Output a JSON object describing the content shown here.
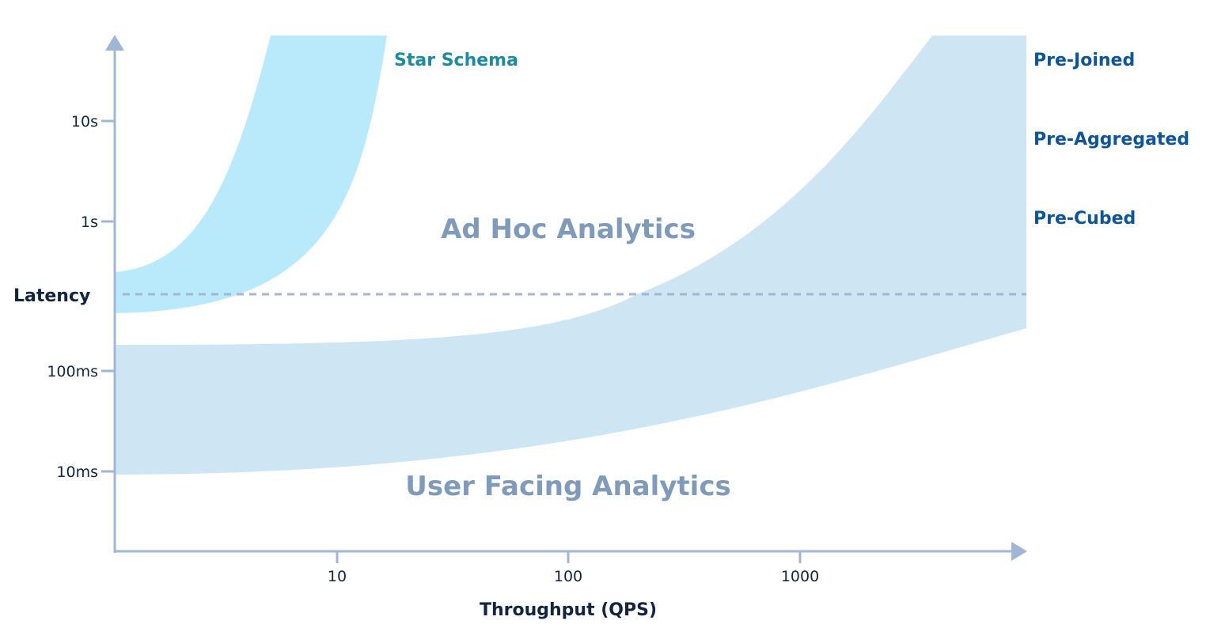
{
  "chart_data": {
    "type": "area",
    "title": "",
    "xlabel": "Throughput (QPS)",
    "ylabel": "Latency",
    "x_scale": "log",
    "y_scale": "log",
    "x_ticks": [
      "10",
      "100",
      "1000"
    ],
    "y_ticks": [
      "10s",
      "1s",
      "100ms",
      "10ms"
    ],
    "regions": [
      {
        "name": "Ad Hoc Analytics"
      },
      {
        "name": "User Facing Analytics"
      }
    ],
    "series": [
      {
        "name": "Star Schema",
        "color": "#b8eafc",
        "description_labels": [
          "Star Schema"
        ]
      },
      {
        "name": "Pre-Joined / Pre-Aggregated / Pre-Cubed",
        "color": "#cee5f4",
        "labels": [
          "Pre-Joined",
          "Pre-Aggregated",
          "Pre-Cubed"
        ]
      }
    ],
    "reference_line": {
      "style": "dashed",
      "color": "#a0b6d4"
    },
    "colors": {
      "axis": "#a0b6d4",
      "text": "#13253e",
      "star_label": "#1e8aa0",
      "pre_label": "#0e5597",
      "region_label": "#7f9aba"
    }
  }
}
